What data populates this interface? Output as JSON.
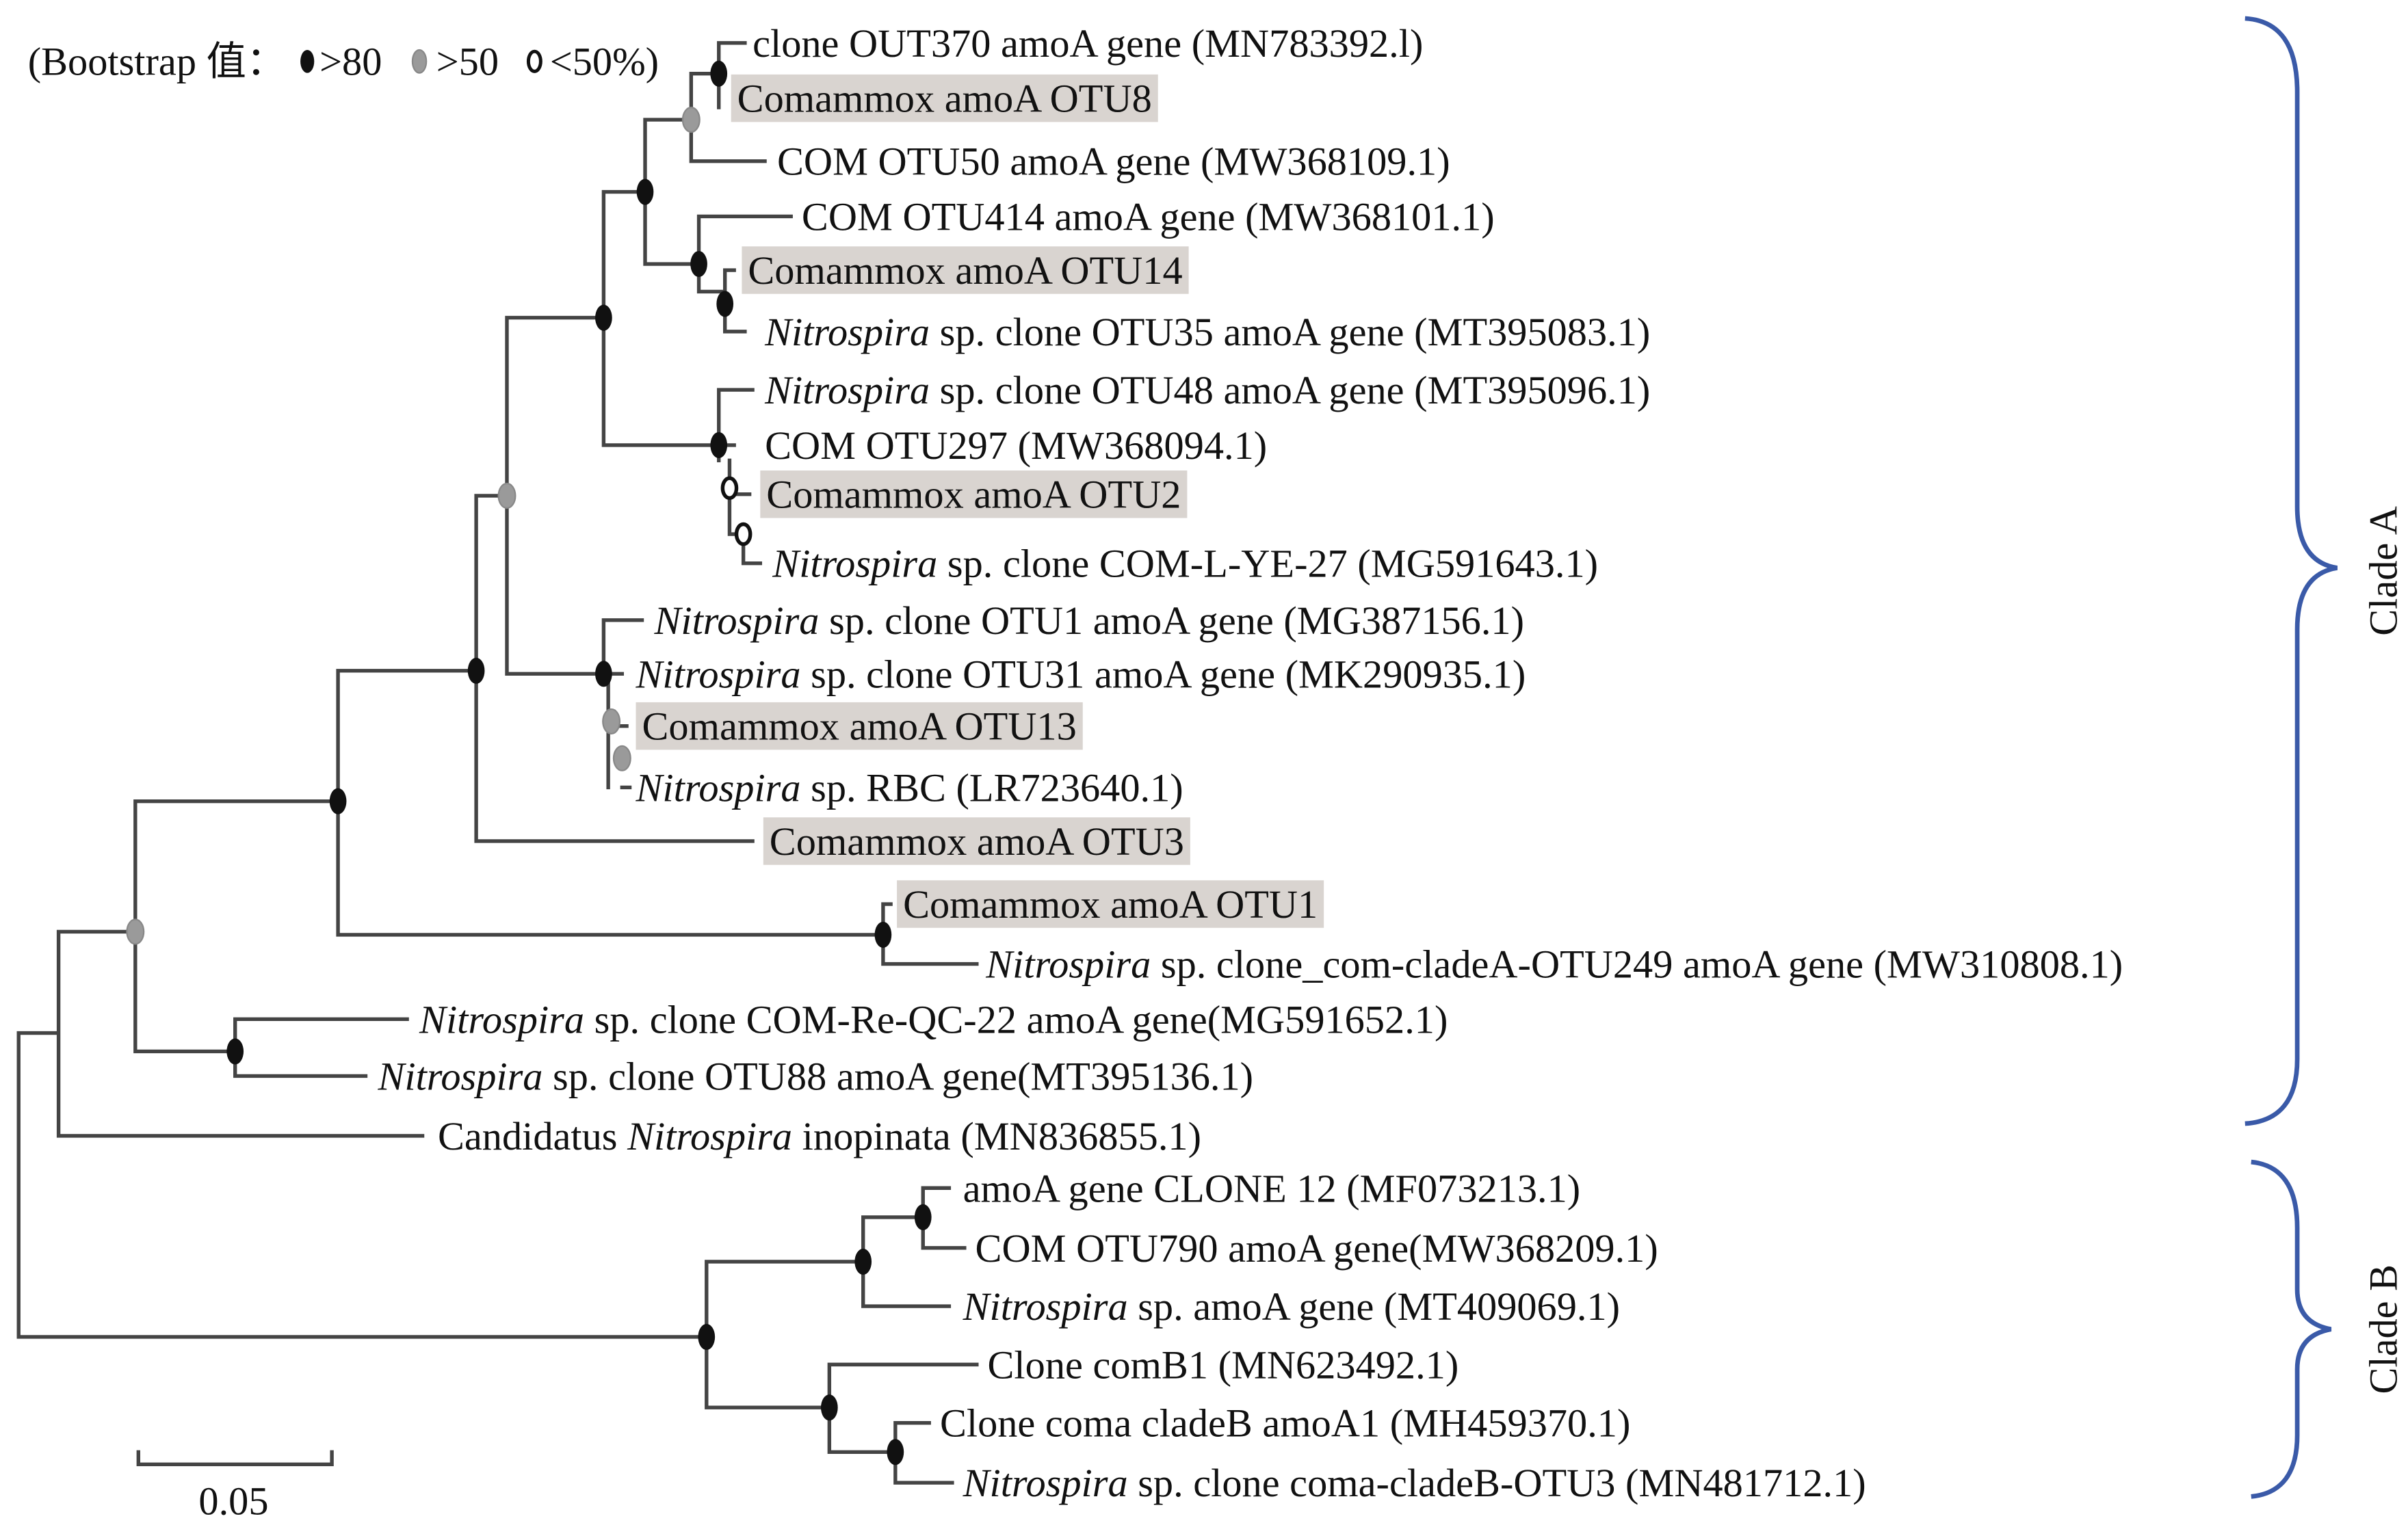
{
  "legend": {
    "prefix": "(Bootstrap 值：",
    "items": [
      {
        "symbol": "filled-black-node",
        "label": ">80"
      },
      {
        "symbol": "filled-gray-node",
        "label": ">50"
      },
      {
        "symbol": "open-node",
        "label": "<50%)"
      }
    ]
  },
  "leaves": [
    {
      "italic": "",
      "text": "clone OUT370 amoA gene (MN783392.l)",
      "highlight": false
    },
    {
      "italic": "",
      "text": "Comammox amoA OTU8",
      "highlight": true
    },
    {
      "italic": "",
      "text": "COM OTU50 amoA gene (MW368109.1)",
      "highlight": false
    },
    {
      "italic": "",
      "text": "COM OTU414 amoA gene (MW368101.1)",
      "highlight": false
    },
    {
      "italic": "",
      "text": "Comammox amoA OTU14",
      "highlight": true
    },
    {
      "italic": "Nitrospira",
      "text": " sp. clone OTU35 amoA gene (MT395083.1)",
      "highlight": false
    },
    {
      "italic": "Nitrospira",
      "text": " sp. clone OTU48 amoA gene (MT395096.1)",
      "highlight": false
    },
    {
      "italic": "",
      "text": "COM OTU297 (MW368094.1)",
      "highlight": false
    },
    {
      "italic": "",
      "text": "Comammox amoA OTU2",
      "highlight": true
    },
    {
      "italic": "Nitrospira",
      "text": " sp. clone COM-L-YE-27 (MG591643.1)",
      "highlight": false
    },
    {
      "italic": "Nitrospira",
      "text": " sp. clone OTU1 amoA gene (MG387156.1)",
      "highlight": false
    },
    {
      "italic": "Nitrospira",
      "text": " sp. clone OTU31 amoA gene (MK290935.1)",
      "highlight": false
    },
    {
      "italic": "",
      "text": "Comammox amoA OTU13",
      "highlight": true
    },
    {
      "italic": "Nitrospira",
      "text": " sp. RBC (LR723640.1)",
      "highlight": false
    },
    {
      "italic": "",
      "text": "Comammox amoA OTU3",
      "highlight": true
    },
    {
      "italic": "",
      "text": "Comammox amoA OTU1",
      "highlight": true
    },
    {
      "italic": "Nitrospira",
      "text": " sp. clone_com-cladeA-OTU249 amoA gene (MW310808.1)",
      "highlight": false
    },
    {
      "italic": "Nitrospira",
      "text": " sp. clone COM-Re-QC-22 amoA gene(MG591652.1)",
      "highlight": false
    },
    {
      "italic": "Nitrospira",
      "text": " sp. clone OTU88 amoA gene(MT395136.1)",
      "highlight": false
    },
    {
      "prefix": "Candidatus ",
      "italic": "Nitrospira",
      "text": " inopinata (MN836855.1)",
      "highlight": false
    },
    {
      "italic": "",
      "text": "amoA gene CLONE 12 (MF073213.1)",
      "highlight": false
    },
    {
      "italic": "",
      "text": "COM OTU790 amoA gene(MW368209.1)",
      "highlight": false
    },
    {
      "italic": "Nitrospira",
      "text": " sp. amoA gene (MT409069.1)",
      "highlight": false
    },
    {
      "italic": "",
      "text": "Clone comB1 (MN623492.1)",
      "highlight": false
    },
    {
      "italic": "",
      "text": "Clone coma cladeB amoA1 (MH459370.1)",
      "highlight": false
    },
    {
      "italic": "Nitrospira",
      "text": " sp. clone coma-cladeB-OTU3 (MN481712.1)",
      "highlight": false
    }
  ],
  "clades": [
    {
      "label": "Clade A"
    },
    {
      "label": "Clade B"
    }
  ],
  "scale_bar": {
    "label": "0.05"
  },
  "colors": {
    "highlight": "#d9d4d0",
    "brace": "#3a5aa8",
    "node_high": "#111111",
    "node_mid": "#9a9a9a",
    "branch": "#444444"
  }
}
